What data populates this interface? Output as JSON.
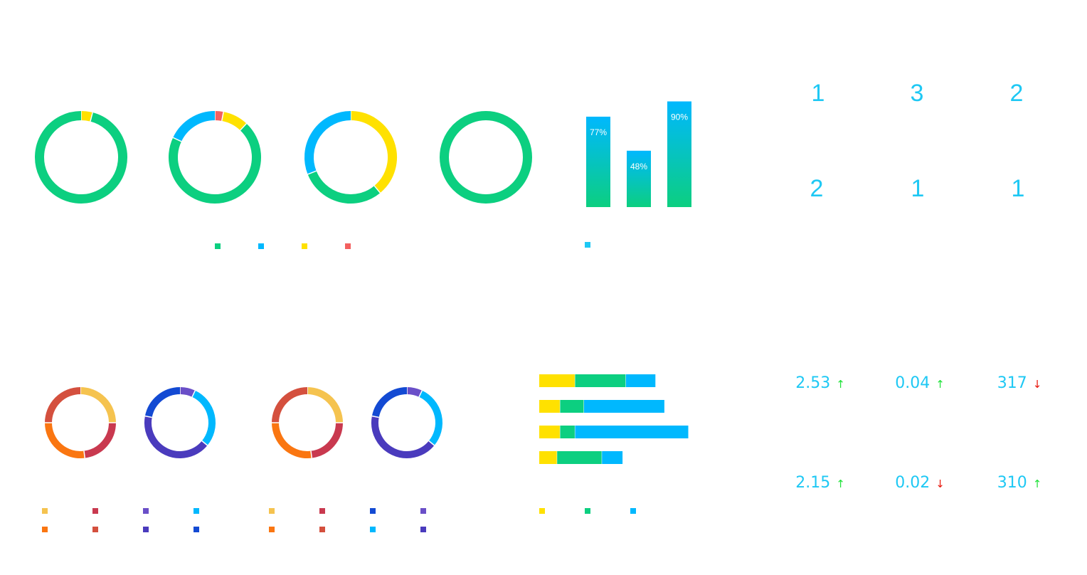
{
  "colors": {
    "green": "#0ccf80",
    "blue": "#00b8fe",
    "yellow": "#ffe100",
    "red": "#f3605f",
    "up": "#21e23a",
    "down": "#e8160b",
    "number": "#1ec8f4"
  },
  "chart_data": [
    {
      "type": "pie",
      "subtype": "donut",
      "values": [
        4,
        96
      ],
      "colors": [
        "#ffe100",
        "#0ccf80"
      ]
    },
    {
      "type": "pie",
      "subtype": "donut",
      "values": [
        3,
        9,
        70,
        18
      ],
      "colors": [
        "#f3605f",
        "#ffe100",
        "#0ccf80",
        "#00b8fe"
      ]
    },
    {
      "type": "pie",
      "subtype": "donut",
      "values": [
        39,
        30,
        31
      ],
      "colors": [
        "#ffe100",
        "#0ccf80",
        "#00b8fe"
      ]
    },
    {
      "type": "pie",
      "subtype": "donut",
      "values": [
        100
      ],
      "colors": [
        "#0ccf80"
      ]
    },
    {
      "type": "bar",
      "categories": [
        "",
        "",
        ""
      ],
      "values": [
        77,
        48,
        90
      ],
      "labels": [
        "77%",
        "48%",
        "90%"
      ],
      "ylim": [
        0,
        100
      ],
      "gradient": [
        "#00b8fe",
        "#0ccf80"
      ]
    },
    {
      "type": "pie",
      "subtype": "donut",
      "values": [
        25,
        23,
        27,
        25
      ],
      "colors": [
        "#f5c34f",
        "#c9394f",
        "#fa7611",
        "#d4503e"
      ]
    },
    {
      "type": "pie",
      "subtype": "donut",
      "values": [
        7,
        29,
        42,
        22
      ],
      "colors": [
        "#6a4fc8",
        "#00b8fe",
        "#4a3bbd",
        "#134ad3"
      ]
    },
    {
      "type": "pie",
      "subtype": "donut",
      "values": [
        25,
        23,
        27,
        25
      ],
      "colors": [
        "#f5c34f",
        "#c9394f",
        "#fa7611",
        "#d4503e"
      ]
    },
    {
      "type": "pie",
      "subtype": "donut",
      "values": [
        7,
        29,
        42,
        22
      ],
      "colors": [
        "#6a4fc8",
        "#00b8fe",
        "#4a3bbd",
        "#134ad3"
      ]
    },
    {
      "type": "bar",
      "subtype": "stacked-horizontal",
      "categories": [
        "",
        "",
        "",
        ""
      ],
      "series": [
        {
          "values": [
            12,
            7,
            7,
            6
          ],
          "color": "#ffe100"
        },
        {
          "values": [
            17,
            8,
            5,
            15
          ],
          "color": "#0ccf80"
        },
        {
          "values": [
            10,
            27,
            38,
            7
          ],
          "color": "#00b8fe"
        }
      ],
      "xlim": [
        0,
        52
      ]
    }
  ],
  "top_legend_colors": [
    "#0ccf80",
    "#00b8fe",
    "#ffe100",
    "#f3605f"
  ],
  "bar_legend_colors": [
    "#1ec8f4"
  ],
  "legend_a_colors": [
    "#f5c34f",
    "#c9394f",
    "#6a4fc8",
    "#00b8fe",
    "#fa7611",
    "#d4503e",
    "#4a3bbd",
    "#134ad3"
  ],
  "legend_b_colors": [
    "#f5c34f",
    "#c9394f",
    "#134ad3",
    "#6a4fc8",
    "#fa7611",
    "#d4503e",
    "#00b8fe",
    "#4a3bbd"
  ],
  "hbar_legend_colors": [
    "#ffe100",
    "#0ccf80",
    "#00b8fe"
  ],
  "stats": {
    "row1": [
      "1",
      "3",
      "2"
    ],
    "row2": [
      "2",
      "1",
      "1"
    ]
  },
  "metrics": {
    "row1": [
      {
        "value": "2.53",
        "arrow": "↑",
        "trend": "up"
      },
      {
        "value": "0.04",
        "arrow": "↑",
        "trend": "up"
      },
      {
        "value": "317",
        "arrow": "↓",
        "trend": "down"
      }
    ],
    "row2": [
      {
        "value": "2.15",
        "arrow": "↑",
        "trend": "up"
      },
      {
        "value": "0.02",
        "arrow": "↓",
        "trend": "down"
      },
      {
        "value": "310",
        "arrow": "↑",
        "trend": "up"
      }
    ]
  }
}
